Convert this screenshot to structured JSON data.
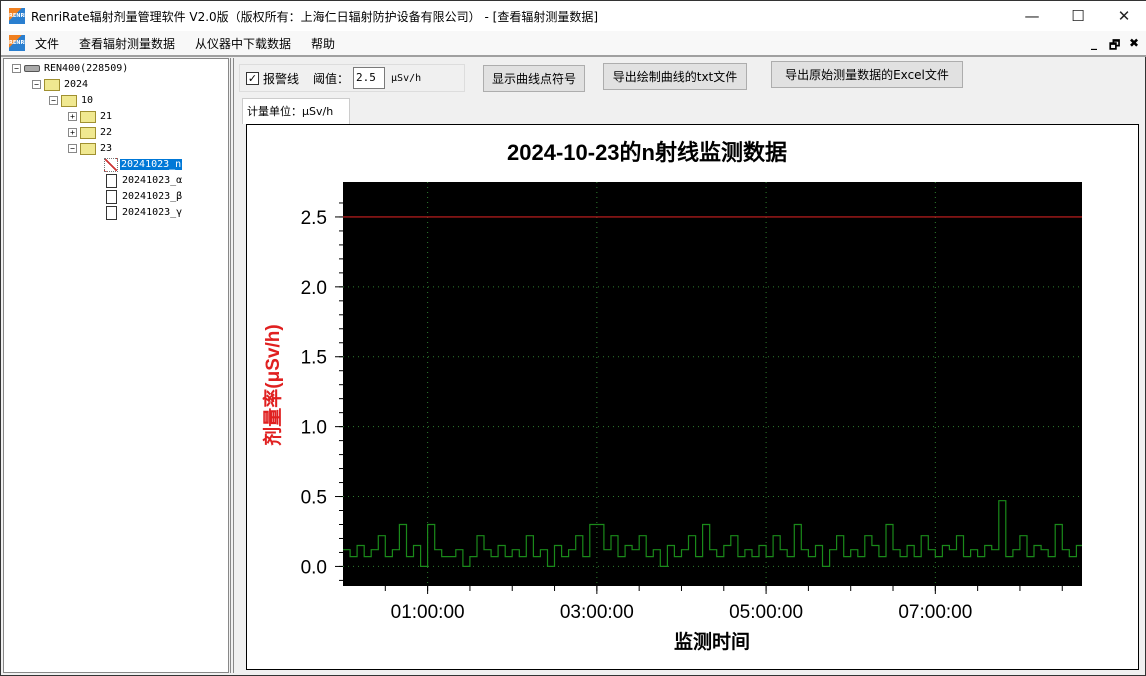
{
  "window": {
    "title": "RenriRate辐射剂量管理软件 V2.0版（版权所有：上海仁日辐射防护设备有限公司） - [查看辐射测量数据]",
    "logo_text": "RENRI",
    "minimize": "—",
    "maximize": "☐",
    "close": "✕",
    "mdi_minimize": "_",
    "mdi_restore": "🗗",
    "mdi_close": "✖"
  },
  "menu": {
    "items": [
      "文件",
      "查看辐射测量数据",
      "从仪器中下载数据",
      "帮助"
    ]
  },
  "tree": {
    "device": "REN400(228509)",
    "year": "2024",
    "month": "10",
    "days": [
      "21",
      "22",
      "23"
    ],
    "files": [
      "20241023_n",
      "20241023_α",
      "20241023_β",
      "20241023_γ"
    ],
    "selected": "20241023_n"
  },
  "toolbar": {
    "alarm_label": "报警线",
    "alarm_checked": true,
    "check_mark": "✓",
    "threshold_label": "阈值：",
    "threshold_value": "2.5",
    "unit": "μSv/h",
    "show_symbols": "显示曲线点符号",
    "export_txt": "导出绘制曲线的txt文件",
    "export_excel": "导出原始测量数据的Excel文件"
  },
  "tab": {
    "label": "计量单位：μSv/h"
  },
  "chart_data": {
    "type": "line",
    "title": "2024-10-23的n射线监测数据",
    "xlabel": "监测时间",
    "ylabel": "剂量率(μSv/h)",
    "x_range": [
      "00:00:00",
      "08:40:00"
    ],
    "xlim": [
      "00:00:00",
      "08:44:00"
    ],
    "x_tick_labels": [
      "01:00:00",
      "03:00:00",
      "05:00:00",
      "07:00:00"
    ],
    "ylim": [
      -0.14,
      2.75
    ],
    "y_tick_labels": [
      "0.0",
      "0.5",
      "1.0",
      "1.5",
      "2.0",
      "2.5"
    ],
    "grid": true,
    "alarm_line": 2.5,
    "colors": {
      "background": "#000000",
      "series": "#1a8a1a",
      "alarm": "#cc2020",
      "grid": "#2e7d2e",
      "ylabel": "#e02020"
    },
    "values": [
      0.12,
      0.07,
      0.15,
      0.07,
      0.12,
      0.22,
      0.07,
      0.12,
      0.3,
      0.07,
      0.15,
      0.0,
      0.3,
      0.12,
      0.07,
      0.07,
      0.12,
      0.0,
      0.07,
      0.22,
      0.12,
      0.07,
      0.15,
      0.07,
      0.12,
      0.07,
      0.22,
      0.07,
      0.12,
      0.0,
      0.15,
      0.07,
      0.12,
      0.22,
      0.07,
      0.3,
      0.3,
      0.12,
      0.22,
      0.07,
      0.15,
      0.12,
      0.22,
      0.07,
      0.12,
      0.0,
      0.15,
      0.07,
      0.12,
      0.22,
      0.07,
      0.3,
      0.12,
      0.07,
      0.15,
      0.22,
      0.07,
      0.12,
      0.07,
      0.15,
      0.07,
      0.22,
      0.12,
      0.07,
      0.3,
      0.12,
      0.07,
      0.15,
      0.0,
      0.12,
      0.22,
      0.07,
      0.12,
      0.07,
      0.22,
      0.15,
      0.07,
      0.3,
      0.12,
      0.07,
      0.15,
      0.07,
      0.22,
      0.12,
      0.07,
      0.15,
      0.12,
      0.22,
      0.07,
      0.12,
      0.07,
      0.15,
      0.12,
      0.47,
      0.07,
      0.12,
      0.22,
      0.07,
      0.15,
      0.12,
      0.07,
      0.3,
      0.12,
      0.07,
      0.15
    ]
  }
}
